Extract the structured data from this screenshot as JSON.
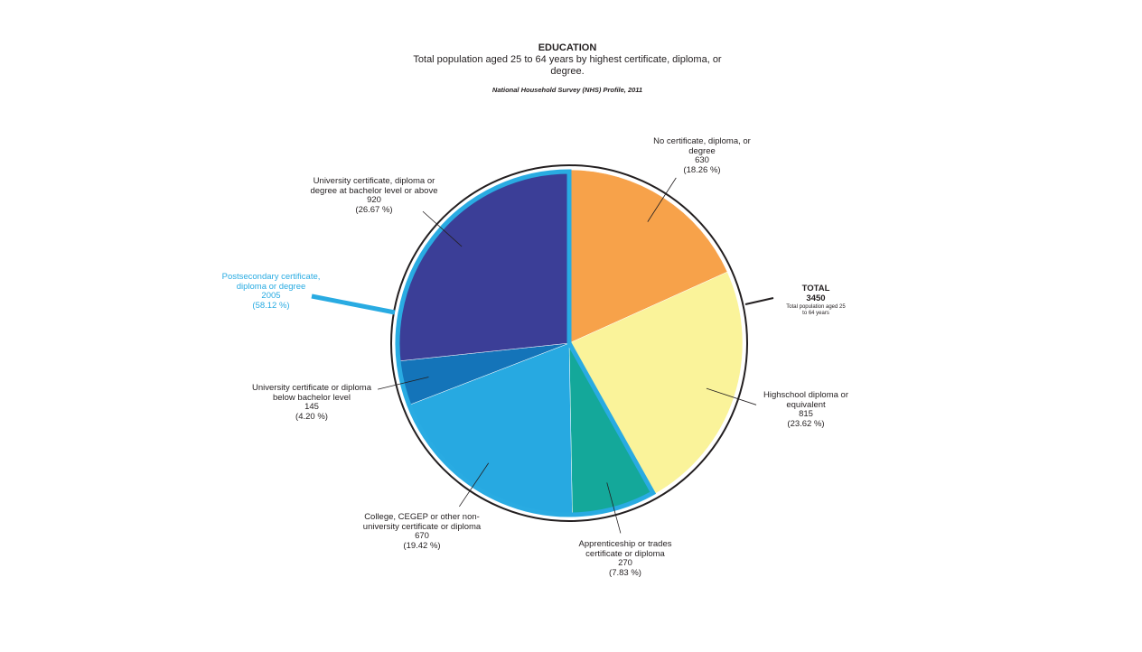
{
  "chart_data": {
    "type": "pie",
    "title": "EDUCATION",
    "subtitle": "Total population aged 25 to 64 years by highest certificate, diploma, or degree.",
    "source": "National Household Survey (NHS) Profile, 2011",
    "categories": [
      "No certificate, diploma, or degree",
      "Highschool diploma or equivalent",
      "Apprenticeship or trades certificate or diploma",
      "College, CEGEP or other non-university certificate or diploma",
      "University certificate or diploma below bachelor level",
      "University certificate, diploma or degree at bachelor level or above"
    ],
    "values": [
      630,
      815,
      270,
      670,
      145,
      920
    ],
    "percent_labels": [
      "(18.26 %)",
      "(23.62 %)",
      "(7.83  %)",
      "(19.42 %)",
      "(4.20 %)",
      "(26.67 %)"
    ],
    "colors": [
      "#f7a24a",
      "#faf39a",
      "#14a89a",
      "#27a9e1",
      "#1474b9",
      "#3b3e97"
    ],
    "group": {
      "name": "Postsecondary certificate, diploma or degree",
      "value": 2005,
      "percent_label": "(58.12 %)",
      "color": "#29abe2"
    },
    "total": {
      "label": "TOTAL",
      "value": 3450,
      "note": "Total population aged 25 to 64 years"
    }
  }
}
